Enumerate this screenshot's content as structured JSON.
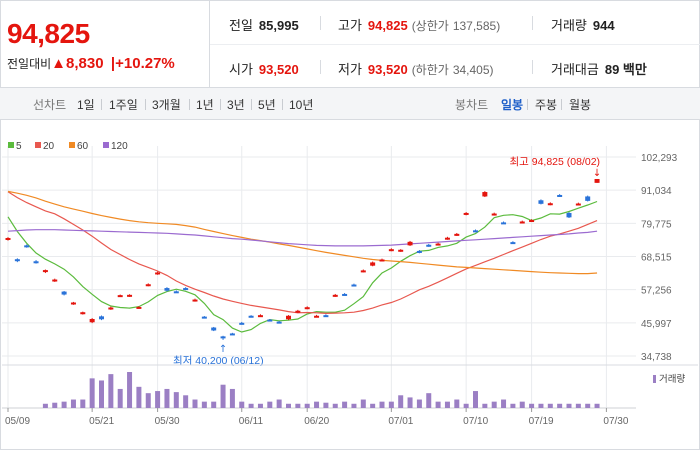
{
  "header": {
    "price": "94,825",
    "change_label": "전일대비",
    "change_arrow": "▲",
    "change_value": "8,830",
    "change_pct": "+10.27%",
    "prev_close": {
      "label": "전일",
      "value": "85,995"
    },
    "open": {
      "label": "시가",
      "value": "93,520"
    },
    "high": {
      "label": "고가",
      "value": "94,825",
      "sub_label": "(상한가",
      "sub_value": "137,585)"
    },
    "low": {
      "label": "저가",
      "value": "93,520",
      "sub_label": "(하한가",
      "sub_value": "34,405)"
    },
    "volume": {
      "label": "거래량",
      "value": "944"
    },
    "trade_value": {
      "label": "거래대금",
      "value": "89 백만"
    }
  },
  "tabs": {
    "line_label": "선차트",
    "line_periods": [
      "1일",
      "1주일",
      "3개월",
      "1년",
      "3년",
      "5년",
      "10년"
    ],
    "candle_label": "봉차트",
    "candle_periods": [
      "일봉",
      "주봉",
      "월봉"
    ],
    "active_candle": "일봉"
  },
  "chart_data": {
    "type": "candlestick",
    "legend": [
      {
        "name": "5",
        "color": "#5bbb3d"
      },
      {
        "name": "20",
        "color": "#e8584f"
      },
      {
        "name": "60",
        "color": "#f08a24"
      },
      {
        "name": "120",
        "color": "#9b6bd0"
      }
    ],
    "y_ticks": [
      "102,293",
      "91,034",
      "79,775",
      "68,515",
      "57,256",
      "45,997",
      "34,738"
    ],
    "ylim": [
      34738,
      102293
    ],
    "x_ticks": [
      "05/09",
      "05/21",
      "05/30",
      "06/11",
      "06/20",
      "07/01",
      "07/10",
      "07/19",
      "07/30"
    ],
    "x_tick_index": [
      0,
      9,
      16,
      25,
      32,
      41,
      49,
      56,
      64
    ],
    "candles": [
      {
        "o": 74200,
        "c": 74800,
        "h": 75100,
        "l": 73900
      },
      {
        "o": 67600,
        "c": 67000,
        "h": 67900,
        "l": 66600
      },
      {
        "o": 72300,
        "c": 71900,
        "h": 72600,
        "l": 71500
      },
      {
        "o": 66900,
        "c": 66400,
        "h": 67300,
        "l": 66100
      },
      {
        "o": 63300,
        "c": 63900,
        "h": 64100,
        "l": 62900
      },
      {
        "o": 60200,
        "c": 60700,
        "h": 61000,
        "l": 59900
      },
      {
        "o": 56600,
        "c": 55600,
        "h": 56800,
        "l": 55300
      },
      {
        "o": 52400,
        "c": 52900,
        "h": 53100,
        "l": 52100
      },
      {
        "o": 49100,
        "c": 49600,
        "h": 49800,
        "l": 48800
      },
      {
        "o": 46200,
        "c": 47300,
        "h": 47600,
        "l": 45900
      },
      {
        "o": 48200,
        "c": 47200,
        "h": 48500,
        "l": 46900
      },
      {
        "o": 50600,
        "c": 51200,
        "h": 51500,
        "l": 50400
      },
      {
        "o": 55100,
        "c": 55400,
        "h": 55600,
        "l": 54900
      },
      {
        "o": 55000,
        "c": 55500,
        "h": 55700,
        "l": 54800
      },
      {
        "o": 51000,
        "c": 51400,
        "h": 51600,
        "l": 50800
      },
      {
        "o": 58600,
        "c": 59100,
        "h": 59400,
        "l": 58400
      },
      {
        "o": 62500,
        "c": 63100,
        "h": 63400,
        "l": 62300
      },
      {
        "o": 57800,
        "c": 56900,
        "h": 58100,
        "l": 56600
      },
      {
        "o": 56700,
        "c": 56400,
        "h": 57000,
        "l": 56200
      },
      {
        "o": 57800,
        "c": 57300,
        "h": 58100,
        "l": 57100
      },
      {
        "o": 53400,
        "c": 53900,
        "h": 54200,
        "l": 53200
      },
      {
        "o": 48100,
        "c": 47800,
        "h": 48300,
        "l": 47600
      },
      {
        "o": 44400,
        "c": 43400,
        "h": 44600,
        "l": 43200
      },
      {
        "o": 41400,
        "c": 40800,
        "h": 41600,
        "l": 40200
      },
      {
        "o": 42400,
        "c": 42100,
        "h": 42600,
        "l": 41900
      },
      {
        "o": 46000,
        "c": 45600,
        "h": 46300,
        "l": 45400
      },
      {
        "o": 48400,
        "c": 48100,
        "h": 48600,
        "l": 47900
      },
      {
        "o": 48300,
        "c": 48600,
        "h": 48900,
        "l": 48000
      },
      {
        "o": 47100,
        "c": 46900,
        "h": 47300,
        "l": 46700
      },
      {
        "o": 46400,
        "c": 46100,
        "h": 46600,
        "l": 45900
      },
      {
        "o": 47200,
        "c": 48400,
        "h": 48600,
        "l": 46900
      },
      {
        "o": 49500,
        "c": 50100,
        "h": 50400,
        "l": 49300
      },
      {
        "o": 50800,
        "c": 51300,
        "h": 51600,
        "l": 50600
      },
      {
        "o": 48100,
        "c": 48400,
        "h": 48700,
        "l": 47900
      },
      {
        "o": 48600,
        "c": 48300,
        "h": 48900,
        "l": 48100
      },
      {
        "o": 55000,
        "c": 55500,
        "h": 55800,
        "l": 54800
      },
      {
        "o": 55800,
        "c": 55500,
        "h": 56100,
        "l": 55300
      },
      {
        "o": 59000,
        "c": 58600,
        "h": 59300,
        "l": 58400
      },
      {
        "o": 63300,
        "c": 63800,
        "h": 64100,
        "l": 63100
      },
      {
        "o": 65400,
        "c": 66500,
        "h": 66800,
        "l": 65200
      },
      {
        "o": 67000,
        "c": 67500,
        "h": 67800,
        "l": 66800
      },
      {
        "o": 70500,
        "c": 71000,
        "h": 71300,
        "l": 70300
      },
      {
        "o": 70300,
        "c": 70800,
        "h": 71000,
        "l": 70100
      },
      {
        "o": 72300,
        "c": 73500,
        "h": 73800,
        "l": 72100
      },
      {
        "o": 70400,
        "c": 69900,
        "h": 70700,
        "l": 69600
      },
      {
        "o": 72500,
        "c": 72100,
        "h": 72800,
        "l": 71800
      },
      {
        "o": 72500,
        "c": 72900,
        "h": 73200,
        "l": 72300
      },
      {
        "o": 74400,
        "c": 74900,
        "h": 75200,
        "l": 74200
      },
      {
        "o": 75700,
        "c": 76200,
        "h": 76500,
        "l": 75500
      },
      {
        "o": 82700,
        "c": 83300,
        "h": 83600,
        "l": 82500
      },
      {
        "o": 77400,
        "c": 77000,
        "h": 77700,
        "l": 76700
      },
      {
        "o": 88900,
        "c": 90400,
        "h": 90700,
        "l": 88700
      },
      {
        "o": 82600,
        "c": 83100,
        "h": 83400,
        "l": 82400
      },
      {
        "o": 80100,
        "c": 79800,
        "h": 80400,
        "l": 79600
      },
      {
        "o": 73400,
        "c": 73100,
        "h": 73700,
        "l": 72900
      },
      {
        "o": 80000,
        "c": 80400,
        "h": 80700,
        "l": 79800
      },
      {
        "o": 80600,
        "c": 80900,
        "h": 81200,
        "l": 80400
      },
      {
        "o": 87600,
        "c": 86400,
        "h": 87900,
        "l": 86200
      },
      {
        "o": 86100,
        "c": 86600,
        "h": 86900,
        "l": 85900
      },
      {
        "o": 89400,
        "c": 89000,
        "h": 89700,
        "l": 88800
      },
      {
        "o": 83300,
        "c": 81800,
        "h": 83600,
        "l": 81600
      },
      {
        "o": 86100,
        "c": 86500,
        "h": 86800,
        "l": 85900
      },
      {
        "o": 88900,
        "c": 87400,
        "h": 89200,
        "l": 87200
      },
      {
        "o": 93520,
        "c": 94825,
        "h": 94825,
        "l": 93520
      }
    ],
    "ma": {
      "5": [
        82000,
        77000,
        73000,
        69700,
        67600,
        66000,
        64200,
        61600,
        58300,
        55700,
        53200,
        51700,
        51200,
        51000,
        51500,
        53100,
        55300,
        56600,
        57400,
        56700,
        55500,
        52600,
        48800,
        47100,
        44200,
        42900,
        43700,
        45800,
        47100,
        46700,
        46900,
        47300,
        49000,
        49800,
        49600,
        49600,
        50300,
        52500,
        54900,
        59600,
        62900,
        64600,
        66900,
        68800,
        70300,
        70600,
        71600,
        72100,
        73000,
        75100,
        76300,
        78500,
        81700,
        82500,
        82700,
        82100,
        80700,
        81600,
        83000,
        82900,
        83800,
        84900,
        86000,
        87200
      ],
      "20": [
        90500,
        88500,
        86800,
        85400,
        84000,
        83000,
        81300,
        79400,
        77500,
        75400,
        73100,
        70900,
        69200,
        67500,
        66000,
        64800,
        63600,
        62100,
        60200,
        58700,
        57400,
        56300,
        55100,
        54100,
        53300,
        52600,
        51900,
        51400,
        50900,
        50400,
        49800,
        49400,
        49500,
        49400,
        49200,
        49300,
        49400,
        49600,
        50200,
        51000,
        52100,
        52900,
        54100,
        55600,
        57200,
        58400,
        59800,
        61300,
        62800,
        64300,
        65500,
        66700,
        67900,
        69200,
        70500,
        71700,
        73000,
        74300,
        75400,
        76200,
        77100,
        78100,
        79400,
        80700
      ],
      "60": [
        90600,
        90000,
        89300,
        88400,
        87300,
        86300,
        85400,
        84600,
        83900,
        83100,
        82400,
        81800,
        81200,
        80700,
        80300,
        80000,
        79800,
        79600,
        79400,
        79000,
        78500,
        77700,
        77000,
        76300,
        75600,
        75000,
        74400,
        73900,
        73400,
        72800,
        72300,
        71700,
        71100,
        70500,
        69900,
        69400,
        68900,
        68400,
        67900,
        67500,
        67200,
        67000,
        66800,
        66500,
        66200,
        65900,
        65600,
        65300,
        65000,
        64800,
        64600,
        64400,
        64200,
        64000,
        63800,
        63600,
        63400,
        63200,
        63000,
        62900,
        62800,
        62700,
        62700,
        62900
      ],
      "120": [
        77100,
        77300,
        77500,
        77600,
        77600,
        77600,
        77500,
        77400,
        77300,
        77200,
        77100,
        77000,
        76900,
        76800,
        76700,
        76600,
        76500,
        76400,
        76200,
        76000,
        75800,
        75500,
        75200,
        74900,
        74600,
        74400,
        74100,
        73800,
        73500,
        73200,
        72900,
        72700,
        72500,
        72300,
        72200,
        72100,
        72100,
        72100,
        72100,
        72200,
        72300,
        72400,
        72600,
        72800,
        73000,
        73200,
        73400,
        73600,
        73800,
        74000,
        74200,
        74400,
        74600,
        74800,
        75000,
        75200,
        75400,
        75600,
        75800,
        76000,
        76200,
        76500,
        76700,
        77100
      ]
    },
    "volume_label": "거래량",
    "volume": [
      0,
      0,
      0,
      0,
      4,
      5,
      6,
      8,
      8,
      28,
      26,
      32,
      18,
      34,
      20,
      14,
      16,
      18,
      15,
      12,
      8,
      6,
      6,
      22,
      18,
      6,
      4,
      4,
      6,
      8,
      4,
      4,
      4,
      6,
      5,
      4,
      6,
      4,
      8,
      4,
      6,
      6,
      12,
      10,
      8,
      14,
      6,
      6,
      8,
      4,
      16,
      4,
      6,
      8,
      4,
      6,
      4,
      4,
      4,
      4,
      4,
      4,
      4,
      4
    ],
    "annotations": {
      "high_label": "최고 94,825 (08/02)",
      "low_label": "최저 40,200 (06/12)",
      "high_arrow": "↓",
      "low_arrow": "↑"
    },
    "grid": true,
    "legend_position": "top-left"
  },
  "colors": {
    "up": "#e4150e",
    "down": "#2a73d9",
    "accent": "#1e5fc9",
    "grid": "#e9ebee",
    "volume": "#9b7fc4"
  }
}
